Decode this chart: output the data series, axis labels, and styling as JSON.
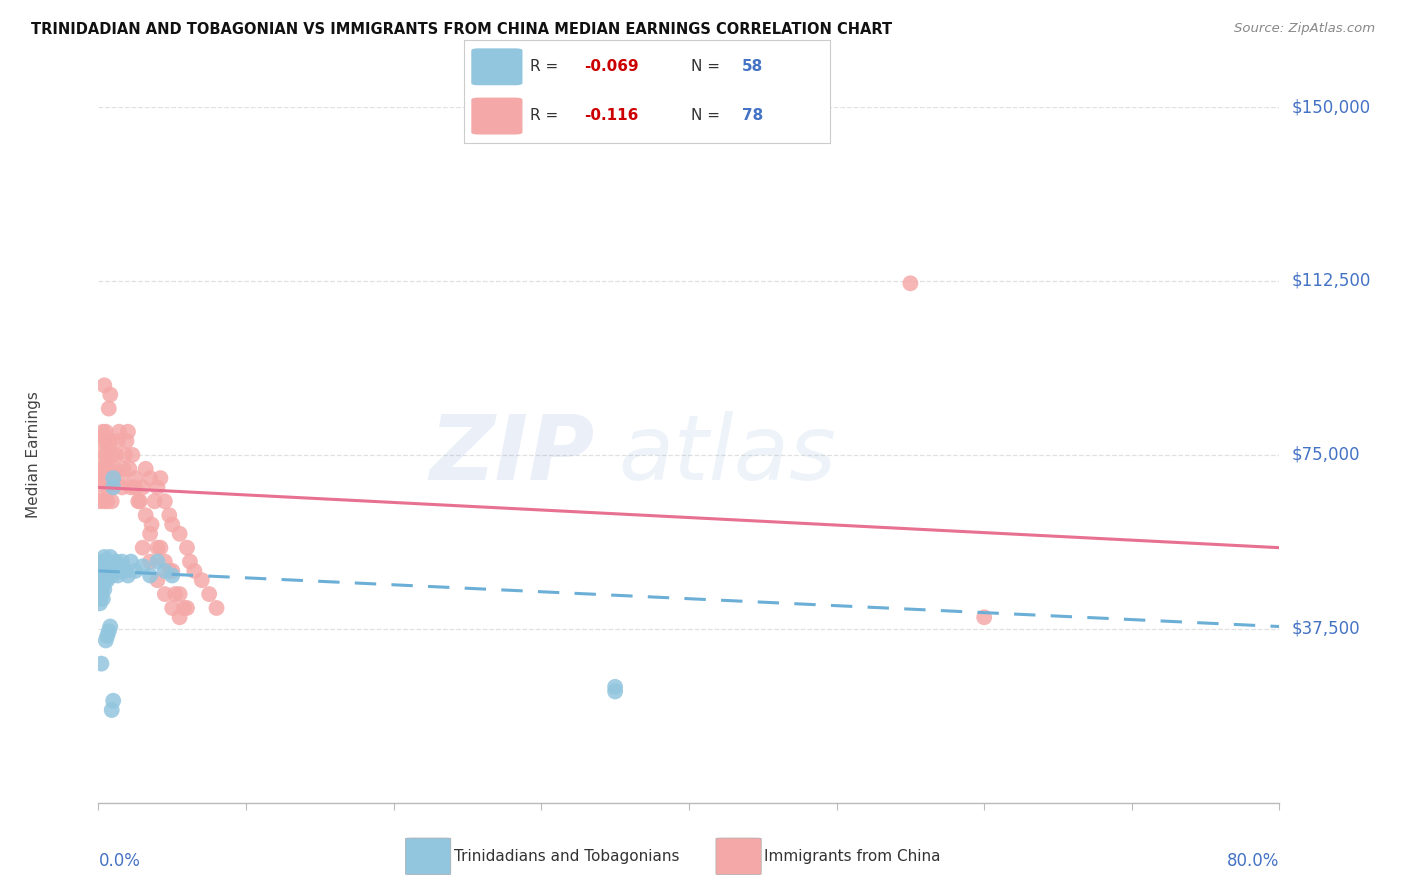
{
  "title": "TRINIDADIAN AND TOBAGONIAN VS IMMIGRANTS FROM CHINA MEDIAN EARNINGS CORRELATION CHART",
  "source": "Source: ZipAtlas.com",
  "ylabel": "Median Earnings",
  "yticks": [
    0,
    37500,
    75000,
    112500,
    150000
  ],
  "ytick_labels": [
    "",
    "$37,500",
    "$75,000",
    "$112,500",
    "$150,000"
  ],
  "xmin": 0.0,
  "xmax": 0.8,
  "ymin": 0,
  "ymax": 150000,
  "blue_color": "#92c5de",
  "pink_color": "#f4a9a8",
  "blue_label": "Trinidadians and Tobagonians",
  "pink_label": "Immigrants from China",
  "watermark": "ZIPatlas",
  "background_color": "#ffffff",
  "grid_color": "#e0e0e0",
  "blue_scatter_x": [
    0.001,
    0.001,
    0.001,
    0.002,
    0.002,
    0.002,
    0.002,
    0.003,
    0.003,
    0.003,
    0.003,
    0.004,
    0.004,
    0.004,
    0.005,
    0.005,
    0.005,
    0.006,
    0.006,
    0.006,
    0.007,
    0.007,
    0.008,
    0.008,
    0.009,
    0.009,
    0.01,
    0.01,
    0.011,
    0.012,
    0.013,
    0.014,
    0.015,
    0.016,
    0.018,
    0.02,
    0.022,
    0.025,
    0.03,
    0.035,
    0.04,
    0.045,
    0.05,
    0.001,
    0.001,
    0.002,
    0.002,
    0.003,
    0.003,
    0.004,
    0.005,
    0.006,
    0.007,
    0.008,
    0.009,
    0.01,
    0.35,
    0.002,
    0.35
  ],
  "blue_scatter_y": [
    50000,
    48000,
    47000,
    51000,
    49000,
    52000,
    48000,
    50000,
    52000,
    49000,
    51000,
    53000,
    50000,
    48000,
    50000,
    52000,
    49000,
    51000,
    50000,
    48000,
    52000,
    50000,
    53000,
    51000,
    50000,
    49000,
    68000,
    70000,
    50000,
    52000,
    49000,
    50000,
    51000,
    52000,
    50000,
    49000,
    52000,
    50000,
    51000,
    49000,
    52000,
    50000,
    49000,
    44000,
    43000,
    46000,
    45000,
    47000,
    44000,
    46000,
    35000,
    36000,
    37000,
    38000,
    20000,
    22000,
    25000,
    30000,
    24000
  ],
  "pink_scatter_x": [
    0.001,
    0.001,
    0.002,
    0.002,
    0.002,
    0.003,
    0.003,
    0.003,
    0.004,
    0.004,
    0.004,
    0.005,
    0.005,
    0.005,
    0.006,
    0.006,
    0.006,
    0.007,
    0.007,
    0.008,
    0.008,
    0.009,
    0.009,
    0.01,
    0.01,
    0.011,
    0.012,
    0.013,
    0.014,
    0.015,
    0.016,
    0.017,
    0.018,
    0.019,
    0.02,
    0.021,
    0.022,
    0.023,
    0.025,
    0.027,
    0.03,
    0.032,
    0.035,
    0.038,
    0.04,
    0.042,
    0.045,
    0.048,
    0.05,
    0.055,
    0.06,
    0.062,
    0.065,
    0.07,
    0.075,
    0.08,
    0.03,
    0.035,
    0.04,
    0.045,
    0.05,
    0.055,
    0.035,
    0.04,
    0.045,
    0.05,
    0.55,
    0.6,
    0.055,
    0.06,
    0.025,
    0.028,
    0.032,
    0.036,
    0.042,
    0.048,
    0.052,
    0.058
  ],
  "pink_scatter_y": [
    68000,
    65000,
    72000,
    70000,
    75000,
    80000,
    78000,
    70000,
    65000,
    72000,
    90000,
    75000,
    78000,
    80000,
    65000,
    68000,
    70000,
    72000,
    85000,
    88000,
    78000,
    75000,
    65000,
    68000,
    70000,
    72000,
    75000,
    78000,
    80000,
    70000,
    68000,
    72000,
    75000,
    78000,
    80000,
    72000,
    68000,
    75000,
    70000,
    65000,
    68000,
    72000,
    70000,
    65000,
    68000,
    70000,
    65000,
    62000,
    60000,
    58000,
    55000,
    52000,
    50000,
    48000,
    45000,
    42000,
    55000,
    52000,
    48000,
    45000,
    42000,
    40000,
    58000,
    55000,
    52000,
    50000,
    112000,
    40000,
    45000,
    42000,
    68000,
    65000,
    62000,
    60000,
    55000,
    50000,
    45000,
    42000
  ]
}
